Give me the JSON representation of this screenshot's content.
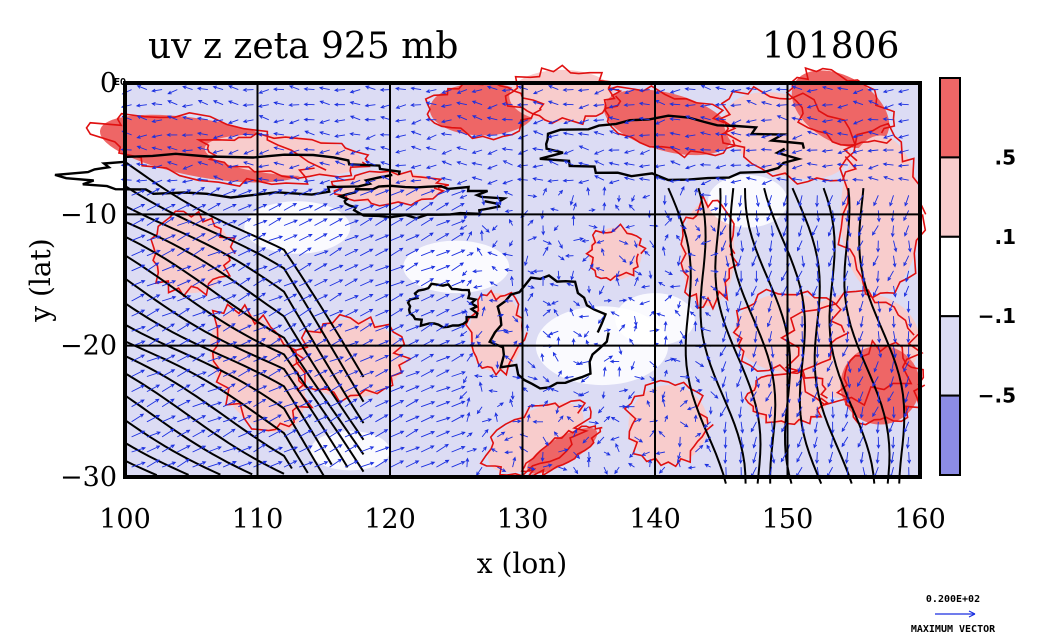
{
  "chart_data": {
    "type": "heatmap",
    "title": "uv z zeta 925 mb",
    "timestamp": "101806",
    "xlabel": "x (lon)",
    "ylabel": "y (lat)",
    "xlim": [
      100,
      160
    ],
    "ylim": [
      -30,
      0
    ],
    "x_ticks": [
      {
        "value": 100,
        "label": "100"
      },
      {
        "value": 110,
        "label": "110"
      },
      {
        "value": 120,
        "label": "120"
      },
      {
        "value": 130,
        "label": "130"
      },
      {
        "value": 140,
        "label": "140"
      },
      {
        "value": 150,
        "label": "150"
      },
      {
        "value": 160,
        "label": "160"
      }
    ],
    "y_ticks": [
      {
        "value": 0,
        "label": "0"
      },
      {
        "value": -10,
        "label": "−10"
      },
      {
        "value": -20,
        "label": "−20"
      },
      {
        "value": -30,
        "label": "−30"
      }
    ],
    "zero_tick_suffix": "EQ",
    "grid": true,
    "colorbar": {
      "levels": [
        {
          "label": ".5"
        },
        {
          "label": ".1"
        },
        {
          "label": "−.1"
        },
        {
          "label": "−.5"
        }
      ],
      "colors": [
        "#ee6666",
        "#f8cccc",
        "#ffffff",
        "#dcdcf4",
        "#8c8ce4"
      ]
    },
    "colors": {
      "positive_strong": "#ee6666",
      "positive_weak": "#f8cccc",
      "negative_weak": "#dcdcf4",
      "negative_strong": "#8c8ce4",
      "vorticity_contour": "#e01010",
      "height_contour": "#000000",
      "wind_vectors": "#1a2fe0"
    },
    "vector_legend": {
      "value": "0.200E+02",
      "label": "MAXIMUM VECTOR"
    }
  }
}
